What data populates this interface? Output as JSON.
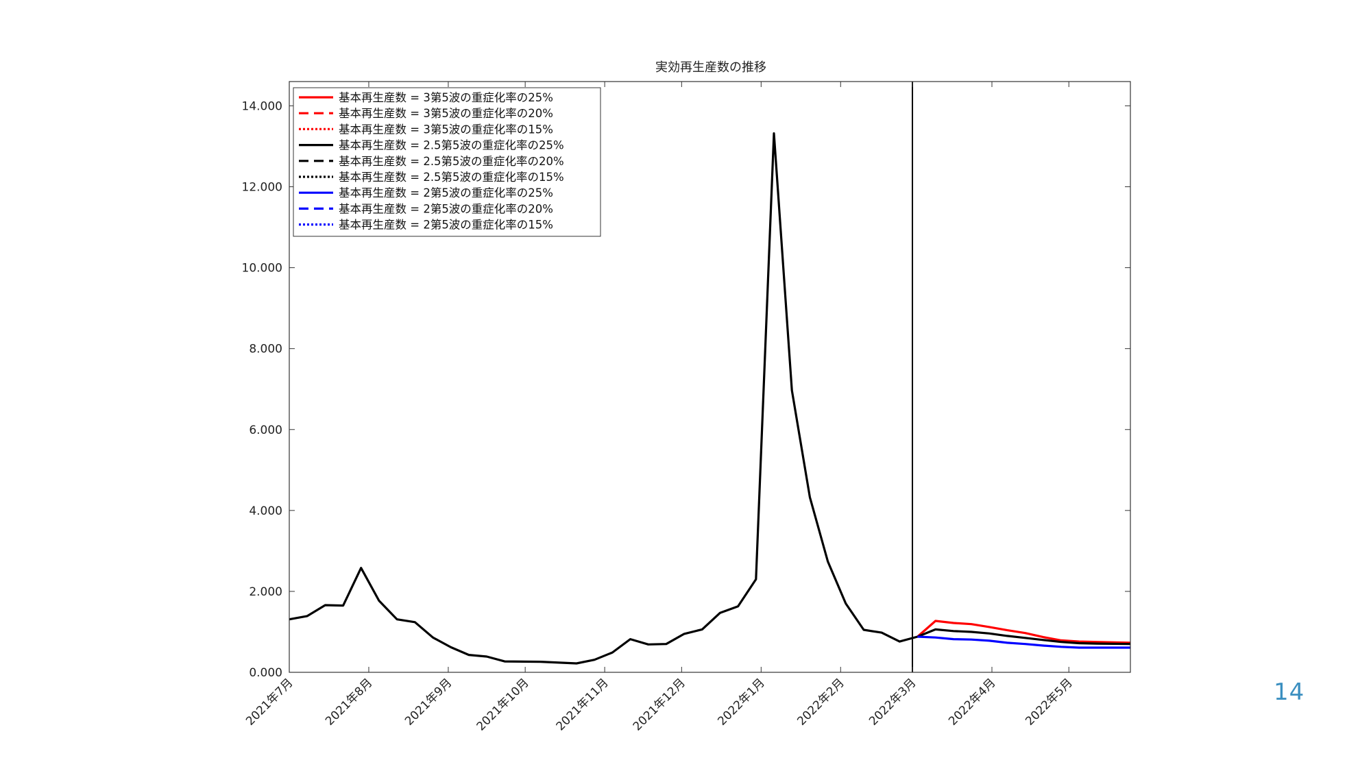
{
  "page_number": "14",
  "chart_data": {
    "type": "line",
    "title": "実効再生産数の推移",
    "xlabel": "",
    "ylabel": "",
    "ylim": [
      0,
      14.6
    ],
    "y_ticks": [
      0,
      2,
      4,
      6,
      8,
      10,
      12,
      14
    ],
    "y_tick_labels": [
      "0.000",
      "2.000",
      "4.000",
      "6.000",
      "8.000",
      "10.000",
      "12.000",
      "14.000"
    ],
    "x_range": [
      "2021-07-01",
      "2022-05-25"
    ],
    "x_ticks": [
      "2021-07-01",
      "2021-08-01",
      "2021-09-01",
      "2021-10-01",
      "2021-11-01",
      "2021-12-01",
      "2022-01-01",
      "2022-02-01",
      "2022-03-01",
      "2022-04-01",
      "2022-05-01"
    ],
    "x_tick_labels": [
      "2021年7月",
      "2021年8月",
      "2021年9月",
      "2021年10月",
      "2021年11月",
      "2021年12月",
      "2022年1月",
      "2022年2月",
      "2022年3月",
      "2022年4月",
      "2022年5月"
    ],
    "vertical_line": "2022-03-01",
    "grid": false,
    "legend_position": "top-left",
    "legend": [
      {
        "label": "基本再生産数 = 3第5波の重症化率の25%",
        "color": "#ff0000",
        "style": "solid"
      },
      {
        "label": "基本再生産数 = 3第5波の重症化率の20%",
        "color": "#ff0000",
        "style": "dashed"
      },
      {
        "label": "基本再生産数 = 3第5波の重症化率の15%",
        "color": "#ff0000",
        "style": "dotted"
      },
      {
        "label": "基本再生産数 = 2.5第5波の重症化率の25%",
        "color": "#000000",
        "style": "solid"
      },
      {
        "label": "基本再生産数 = 2.5第5波の重症化率の20%",
        "color": "#000000",
        "style": "dashed"
      },
      {
        "label": "基本再生産数 = 2.5第5波の重症化率の15%",
        "color": "#000000",
        "style": "dotted"
      },
      {
        "label": "基本再生産数 = 2第5波の重症化率の25%",
        "color": "#0000ff",
        "style": "solid"
      },
      {
        "label": "基本再生産数 = 2第5波の重症化率の20%",
        "color": "#0000ff",
        "style": "dashed"
      },
      {
        "label": "基本再生産数 = 2第5波の重症化率の15%",
        "color": "#0000ff",
        "style": "dotted"
      }
    ],
    "series": [
      {
        "color": "#000000",
        "points": [
          [
            "2021-07-01",
            1.31
          ],
          [
            "2021-07-08",
            1.39
          ],
          [
            "2021-07-15",
            1.66
          ],
          [
            "2021-07-22",
            1.65
          ],
          [
            "2021-07-29",
            2.58
          ],
          [
            "2021-08-05",
            1.77
          ],
          [
            "2021-08-12",
            1.31
          ],
          [
            "2021-08-19",
            1.24
          ],
          [
            "2021-08-26",
            0.86
          ],
          [
            "2021-09-02",
            0.62
          ],
          [
            "2021-09-09",
            0.43
          ],
          [
            "2021-09-16",
            0.39
          ],
          [
            "2021-09-23",
            0.27
          ],
          [
            "2021-10-07",
            0.26
          ],
          [
            "2021-10-21",
            0.22
          ],
          [
            "2021-10-28",
            0.31
          ],
          [
            "2021-11-04",
            0.49
          ],
          [
            "2021-11-11",
            0.82
          ],
          [
            "2021-11-18",
            0.69
          ],
          [
            "2021-11-25",
            0.7
          ],
          [
            "2021-12-02",
            0.95
          ],
          [
            "2021-12-09",
            1.06
          ],
          [
            "2021-12-16",
            1.47
          ],
          [
            "2021-12-23",
            1.63
          ],
          [
            "2021-12-30",
            2.3
          ],
          [
            "2022-01-06",
            13.32
          ],
          [
            "2022-01-13",
            6.97
          ],
          [
            "2022-01-20",
            4.33
          ],
          [
            "2022-01-27",
            2.74
          ],
          [
            "2022-02-03",
            1.7
          ],
          [
            "2022-02-10",
            1.05
          ],
          [
            "2022-02-17",
            0.98
          ],
          [
            "2022-02-24",
            0.76
          ],
          [
            "2022-03-03",
            0.88
          ]
        ]
      },
      {
        "color": "#ff0000",
        "points": [
          [
            "2022-03-03",
            0.88
          ],
          [
            "2022-03-10",
            1.27
          ],
          [
            "2022-03-17",
            1.22
          ],
          [
            "2022-03-24",
            1.19
          ],
          [
            "2022-03-31",
            1.12
          ],
          [
            "2022-04-07",
            1.04
          ],
          [
            "2022-04-14",
            0.97
          ],
          [
            "2022-04-21",
            0.87
          ],
          [
            "2022-04-28",
            0.79
          ],
          [
            "2022-05-05",
            0.76
          ],
          [
            "2022-05-12",
            0.75
          ],
          [
            "2022-05-25",
            0.73
          ]
        ]
      },
      {
        "color": "#000000",
        "points": [
          [
            "2022-03-03",
            0.88
          ],
          [
            "2022-03-10",
            1.06
          ],
          [
            "2022-03-17",
            1.02
          ],
          [
            "2022-03-24",
            1.0
          ],
          [
            "2022-03-31",
            0.96
          ],
          [
            "2022-04-07",
            0.9
          ],
          [
            "2022-04-14",
            0.85
          ],
          [
            "2022-04-21",
            0.8
          ],
          [
            "2022-04-28",
            0.75
          ],
          [
            "2022-05-05",
            0.72
          ],
          [
            "2022-05-12",
            0.71
          ],
          [
            "2022-05-25",
            0.7
          ]
        ]
      },
      {
        "color": "#0000ff",
        "points": [
          [
            "2022-03-03",
            0.88
          ],
          [
            "2022-03-10",
            0.86
          ],
          [
            "2022-03-17",
            0.82
          ],
          [
            "2022-03-24",
            0.81
          ],
          [
            "2022-03-31",
            0.78
          ],
          [
            "2022-04-07",
            0.73
          ],
          [
            "2022-04-14",
            0.7
          ],
          [
            "2022-04-21",
            0.66
          ],
          [
            "2022-04-28",
            0.63
          ],
          [
            "2022-05-05",
            0.61
          ],
          [
            "2022-05-12",
            0.61
          ],
          [
            "2022-05-25",
            0.61
          ]
        ]
      }
    ]
  }
}
